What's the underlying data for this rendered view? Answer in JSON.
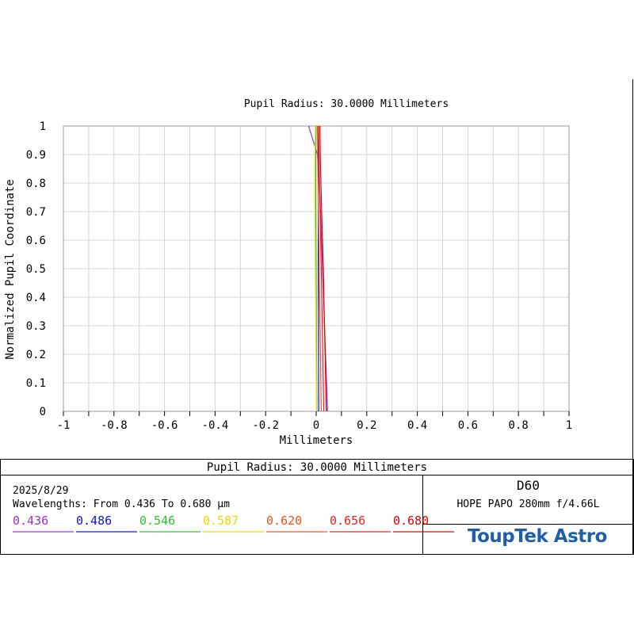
{
  "chart_data": {
    "type": "line",
    "title": "Pupil Radius: 30.0000 Millimeters",
    "xlabel": "Millimeters",
    "ylabel": "Normalized Pupil Coordinate",
    "xlim": [
      -1,
      1
    ],
    "ylim": [
      0,
      1
    ],
    "grid": true,
    "xticks": [
      "-1",
      "-0.8",
      "-0.6",
      "-0.4",
      "-0.2",
      "0",
      "0.2",
      "0.4",
      "0.6",
      "0.8",
      "1"
    ],
    "yticks": [
      "0",
      "0.1",
      "0.2",
      "0.3",
      "0.4",
      "0.5",
      "0.6",
      "0.7",
      "0.8",
      "0.9",
      "1"
    ],
    "y": [
      0,
      0.25,
      0.5,
      0.75,
      0.9,
      1
    ],
    "series": [
      {
        "name": "0.436",
        "color": "#9b30d0",
        "x": [
          0.045,
          0.035,
          0.025,
          0.015,
          0.005,
          -0.03
        ]
      },
      {
        "name": "0.486",
        "color": "#1010e0",
        "x": [
          0.01,
          0.009,
          0.008,
          0.008,
          0.009,
          0.005
        ]
      },
      {
        "name": "0.546",
        "color": "#30c030",
        "x": [
          0.003,
          0.001,
          0.0,
          -0.002,
          -0.002,
          0.0
        ]
      },
      {
        "name": "0.587",
        "color": "#f0d800",
        "x": [
          0.002,
          -0.001,
          -0.003,
          -0.005,
          -0.005,
          -0.003
        ]
      },
      {
        "name": "0.620",
        "color": "#f05020",
        "x": [
          0.02,
          0.016,
          0.012,
          0.008,
          0.006,
          0.005
        ]
      },
      {
        "name": "0.656",
        "color": "#e82020",
        "x": [
          0.03,
          0.025,
          0.02,
          0.014,
          0.011,
          0.01
        ]
      },
      {
        "name": "0.680",
        "color": "#e00000",
        "x": [
          0.04,
          0.034,
          0.028,
          0.02,
          0.016,
          0.015
        ]
      }
    ]
  },
  "footer": {
    "title": "Pupil Radius: 30.0000 Millimeters",
    "date": "2025/8/29",
    "wavelengths": "Wavelengths: From 0.436 To 0.680 µm",
    "config": "D60",
    "lens": "HOPE PAPO 280mm f/4.66L",
    "logo": "ToupTek Astro"
  }
}
